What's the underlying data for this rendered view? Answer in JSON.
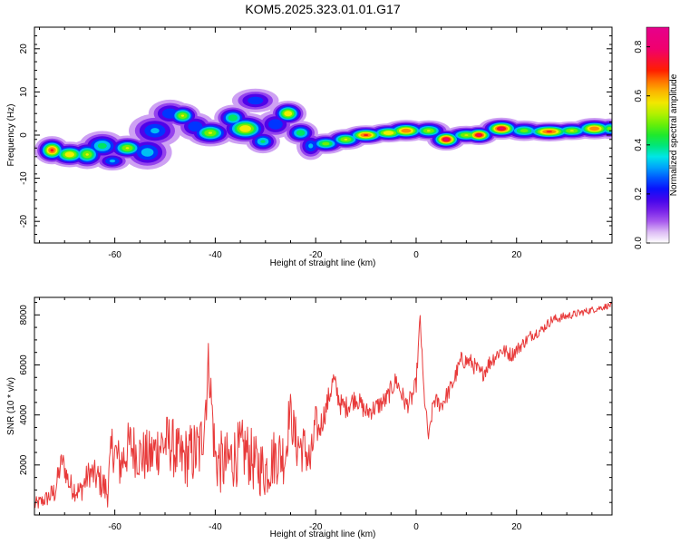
{
  "title": "KOM5.2025.323.01.01.G17",
  "colors": {
    "snr_line": "#e83a3a",
    "axes": "#000000"
  },
  "chart_data": [
    {
      "type": "heatmap",
      "title": "KOM5.2025.323.01.01.G17",
      "xlabel": "Height of straight line (km)",
      "ylabel": "Frequency (Hz)",
      "xlim": [
        -76,
        39
      ],
      "ylim": [
        -25,
        25
      ],
      "xticks": [
        -60,
        -40,
        -20,
        0,
        20
      ],
      "yticks": [
        -20,
        -10,
        0,
        10,
        20
      ],
      "xtick_labels": [
        "-60",
        "-40",
        "-20",
        "0",
        "20"
      ],
      "ytick_labels": [
        "-20",
        "-10",
        "0",
        "10",
        "20"
      ],
      "colorbar": {
        "label": "Normalized spectral amplitude",
        "range": [
          0.0,
          0.88
        ],
        "ticks": [
          "0.0",
          "0.2",
          "0.4",
          "0.6",
          "0.8"
        ],
        "tick_values": [
          0.0,
          0.2,
          0.4,
          0.6,
          0.8
        ],
        "colormap": "rainbow (white-purple-blue-cyan-green-yellow-orange-red-magenta)"
      },
      "blobs": [
        {
          "x": -72.5,
          "y": -3.5,
          "sx": 1.4,
          "sy": 1.3,
          "amp": 0.72
        },
        {
          "x": -69.0,
          "y": -4.5,
          "sx": 1.8,
          "sy": 1.2,
          "amp": 0.62
        },
        {
          "x": -65.5,
          "y": -4.5,
          "sx": 1.6,
          "sy": 1.4,
          "amp": 0.55
        },
        {
          "x": -62.5,
          "y": -2.5,
          "sx": 2.0,
          "sy": 1.5,
          "amp": 0.42
        },
        {
          "x": -60.5,
          "y": -6.0,
          "sx": 1.6,
          "sy": 1.0,
          "amp": 0.32
        },
        {
          "x": -57.5,
          "y": -3.0,
          "sx": 1.8,
          "sy": 1.2,
          "amp": 0.55
        },
        {
          "x": -53.5,
          "y": -4.0,
          "sx": 2.2,
          "sy": 1.8,
          "amp": 0.35
        },
        {
          "x": -52.0,
          "y": 1.0,
          "sx": 2.4,
          "sy": 1.8,
          "amp": 0.32
        },
        {
          "x": -49.0,
          "y": 5.0,
          "sx": 2.0,
          "sy": 1.5,
          "amp": 0.3
        },
        {
          "x": -46.5,
          "y": 4.5,
          "sx": 1.5,
          "sy": 1.2,
          "amp": 0.55
        },
        {
          "x": -44.0,
          "y": 2.0,
          "sx": 1.8,
          "sy": 1.5,
          "amp": 0.3
        },
        {
          "x": -41.0,
          "y": 0.5,
          "sx": 2.0,
          "sy": 1.3,
          "amp": 0.55
        },
        {
          "x": -36.5,
          "y": 4.0,
          "sx": 1.6,
          "sy": 1.3,
          "amp": 0.45
        },
        {
          "x": -34.0,
          "y": 1.5,
          "sx": 2.2,
          "sy": 1.5,
          "amp": 0.62
        },
        {
          "x": -32.0,
          "y": 8.0,
          "sx": 2.2,
          "sy": 1.3,
          "amp": 0.28
        },
        {
          "x": -30.5,
          "y": -1.5,
          "sx": 1.5,
          "sy": 1.2,
          "amp": 0.4
        },
        {
          "x": -28.0,
          "y": 2.5,
          "sx": 1.8,
          "sy": 1.5,
          "amp": 0.3
        },
        {
          "x": -25.5,
          "y": 5.0,
          "sx": 1.5,
          "sy": 1.2,
          "amp": 0.62
        },
        {
          "x": -23.0,
          "y": 0.5,
          "sx": 1.5,
          "sy": 1.2,
          "amp": 0.45
        },
        {
          "x": -21.0,
          "y": -2.5,
          "sx": 1.3,
          "sy": 1.5,
          "amp": 0.32
        },
        {
          "x": -18.0,
          "y": -2.0,
          "sx": 1.8,
          "sy": 1.0,
          "amp": 0.5
        },
        {
          "x": -14.0,
          "y": -1.0,
          "sx": 1.8,
          "sy": 1.0,
          "amp": 0.55
        },
        {
          "x": -10.0,
          "y": 0.0,
          "sx": 2.0,
          "sy": 0.9,
          "amp": 0.72
        },
        {
          "x": -5.5,
          "y": 0.5,
          "sx": 2.0,
          "sy": 0.9,
          "amp": 0.62
        },
        {
          "x": -2.0,
          "y": 1.0,
          "sx": 2.0,
          "sy": 1.0,
          "amp": 0.7
        },
        {
          "x": 2.5,
          "y": 1.0,
          "sx": 1.8,
          "sy": 1.0,
          "amp": 0.55
        },
        {
          "x": 6.0,
          "y": -1.0,
          "sx": 1.5,
          "sy": 1.0,
          "amp": 0.82
        },
        {
          "x": 10.0,
          "y": 0.0,
          "sx": 2.0,
          "sy": 0.9,
          "amp": 0.55
        },
        {
          "x": 12.5,
          "y": 0.0,
          "sx": 1.5,
          "sy": 0.9,
          "amp": 0.8
        },
        {
          "x": 17.0,
          "y": 1.5,
          "sx": 1.8,
          "sy": 1.0,
          "amp": 0.8
        },
        {
          "x": 21.5,
          "y": 1.0,
          "sx": 2.0,
          "sy": 1.0,
          "amp": 0.5
        },
        {
          "x": 26.5,
          "y": 0.8,
          "sx": 2.5,
          "sy": 0.9,
          "amp": 0.72
        },
        {
          "x": 31.0,
          "y": 1.0,
          "sx": 2.0,
          "sy": 0.9,
          "amp": 0.55
        },
        {
          "x": 35.5,
          "y": 1.5,
          "sx": 2.0,
          "sy": 1.0,
          "amp": 0.7
        },
        {
          "x": 38.5,
          "y": 1.5,
          "sx": 1.2,
          "sy": 1.0,
          "amp": 0.5
        }
      ]
    },
    {
      "type": "line",
      "xlabel": "Height of straight line (km)",
      "ylabel": "SNR (10 * v/v)",
      "xlim": [
        -76,
        39
      ],
      "ylim": [
        0,
        8700
      ],
      "xticks": [
        -60,
        -40,
        -20,
        0,
        20
      ],
      "yticks": [
        2000,
        4000,
        6000,
        8000
      ],
      "xtick_labels": [
        "-60",
        "-40",
        "-20",
        "0",
        "20"
      ],
      "ytick_labels": [
        "2000",
        "4000",
        "6000",
        "8000"
      ],
      "series": [
        {
          "name": "SNR",
          "color": "#e83a3a",
          "x": [
            -76,
            -74,
            -72,
            -70.5,
            -69,
            -67,
            -65,
            -63,
            -61.5,
            -60.5,
            -59,
            -57,
            -55,
            -53,
            -51,
            -49,
            -47,
            -45,
            -43,
            -42,
            -41.3,
            -40,
            -38,
            -36,
            -34,
            -32,
            -30,
            -28,
            -26,
            -25.2,
            -24,
            -22,
            -21,
            -20,
            -19.5,
            -18,
            -16.5,
            -15,
            -14,
            -12,
            -10,
            -8,
            -6,
            -4,
            -2,
            -1,
            0,
            0.8,
            1.5,
            2.5,
            3.5,
            5,
            7,
            9,
            11,
            13,
            15,
            17,
            19,
            21,
            23,
            25,
            27,
            29,
            31,
            33,
            35,
            37,
            39
          ],
          "y": [
            400,
            600,
            900,
            2200,
            1200,
            900,
            1700,
            1400,
            900,
            2800,
            2000,
            2800,
            2400,
            2300,
            2800,
            2900,
            2200,
            2400,
            2600,
            4300,
            6200,
            2200,
            2000,
            2400,
            2600,
            2000,
            1800,
            2400,
            2400,
            4300,
            2900,
            2600,
            2000,
            3800,
            3300,
            4200,
            5400,
            4400,
            4300,
            4700,
            4100,
            4300,
            4600,
            5400,
            4400,
            4600,
            5200,
            7900,
            5000,
            3000,
            4600,
            4400,
            5100,
            6200,
            6100,
            5600,
            6200,
            6600,
            6400,
            6800,
            7200,
            7400,
            7800,
            7900,
            8000,
            8100,
            8200,
            8300,
            8400
          ],
          "noise": [
            300,
            300,
            500,
            500,
            500,
            500,
            600,
            700,
            700,
            1000,
            1000,
            1100,
            1100,
            1100,
            1200,
            1200,
            1200,
            1300,
            1400,
            1500,
            1000,
            1300,
            1300,
            1300,
            1300,
            1200,
            1200,
            1200,
            1200,
            800,
            1100,
            1000,
            1000,
            700,
            600,
            500,
            500,
            450,
            450,
            400,
            400,
            400,
            400,
            400,
            400,
            400,
            400,
            300,
            300,
            300,
            350,
            350,
            350,
            350,
            350,
            350,
            350,
            300,
            300,
            250,
            250,
            200,
            200,
            180,
            160,
            150,
            140,
            130,
            120
          ]
        }
      ]
    }
  ]
}
